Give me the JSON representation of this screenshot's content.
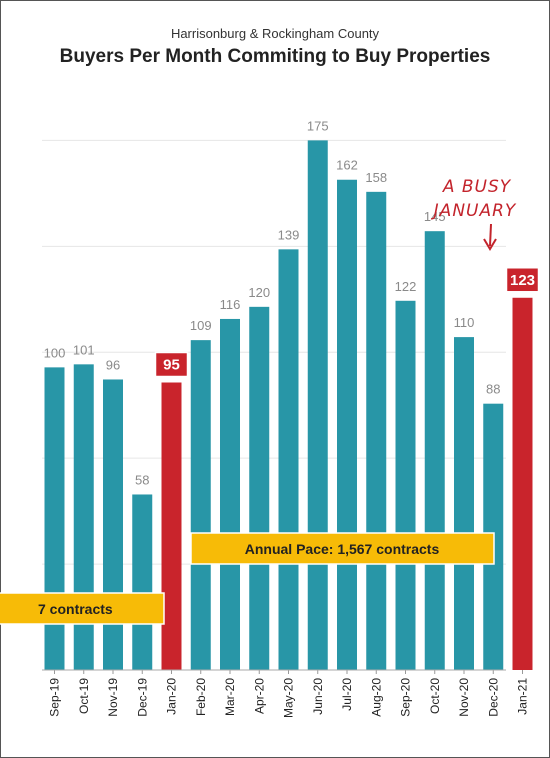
{
  "subtitle": "Harrisonburg & Rockingham County",
  "title": "Buyers Per Month Commiting to Buy Properties",
  "chart_data": {
    "type": "bar",
    "categories": [
      "Sep-19",
      "Oct-19",
      "Nov-19",
      "Dec-19",
      "Jan-20",
      "Feb-20",
      "Mar-20",
      "Apr-20",
      "May-20",
      "Jun-20",
      "Jul-20",
      "Aug-20",
      "Sep-20",
      "Oct-20",
      "Nov-20",
      "Dec-20",
      "Jan-21"
    ],
    "values": [
      100,
      101,
      96,
      58,
      95,
      109,
      116,
      120,
      139,
      175,
      162,
      158,
      122,
      145,
      110,
      88,
      123
    ],
    "highlighted": [
      "Jan-20",
      "Jan-21"
    ],
    "ylim": [
      0,
      190
    ],
    "grid": true,
    "annotations": {
      "pace_left": "7 contracts",
      "pace_right": "Annual Pace: 1,567 contracts",
      "callout_line1": "A BUSY",
      "callout_line2": "JANUARY"
    }
  },
  "colors": {
    "bar": "#2896a7",
    "highlight": "#c9242c",
    "pace": "#f7bb07",
    "callout": "#c3242c"
  }
}
